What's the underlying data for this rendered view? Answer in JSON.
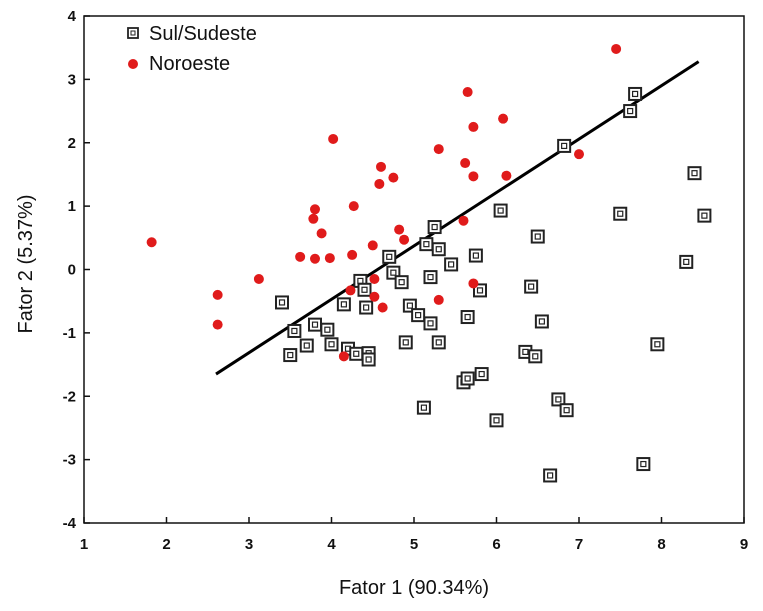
{
  "chart_data": {
    "type": "scatter",
    "xlabel": "Fator 1 (90.34%)",
    "ylabel": "Fator 2 (5.37%)",
    "xlim": [
      1,
      9
    ],
    "ylim": [
      -4,
      4
    ],
    "xticks": [
      "1",
      "2",
      "3",
      "4",
      "5",
      "6",
      "7",
      "8",
      "9"
    ],
    "yticks": [
      "4",
      "3",
      "2",
      "1",
      "0",
      "-1",
      "-2",
      "-3",
      "-4"
    ],
    "legend_position": "top-left",
    "grid": false,
    "series": [
      {
        "name": "Sul/Sudeste",
        "marker": "open-square",
        "color": "#222222",
        "points": [
          [
            3.4,
            -0.52
          ],
          [
            3.55,
            -0.97
          ],
          [
            3.5,
            -1.35
          ],
          [
            3.7,
            -1.2
          ],
          [
            3.8,
            -0.87
          ],
          [
            3.95,
            -0.95
          ],
          [
            4.0,
            -1.18
          ],
          [
            4.15,
            -0.55
          ],
          [
            4.2,
            -1.25
          ],
          [
            4.3,
            -1.33
          ],
          [
            4.35,
            -0.18
          ],
          [
            4.4,
            -0.32
          ],
          [
            4.42,
            -0.6
          ],
          [
            4.45,
            -1.32
          ],
          [
            4.45,
            -1.42
          ],
          [
            4.7,
            0.2
          ],
          [
            4.75,
            -0.05
          ],
          [
            4.85,
            -0.2
          ],
          [
            4.9,
            -1.15
          ],
          [
            4.95,
            -0.57
          ],
          [
            5.05,
            -0.72
          ],
          [
            5.15,
            0.4
          ],
          [
            5.2,
            -0.12
          ],
          [
            5.2,
            -0.85
          ],
          [
            5.25,
            0.67
          ],
          [
            5.3,
            0.32
          ],
          [
            5.3,
            -1.15
          ],
          [
            5.45,
            0.08
          ],
          [
            5.6,
            -1.78
          ],
          [
            5.65,
            -1.72
          ],
          [
            5.65,
            -0.75
          ],
          [
            5.75,
            0.22
          ],
          [
            5.8,
            -0.33
          ],
          [
            5.82,
            -1.65
          ],
          [
            6.0,
            -2.38
          ],
          [
            6.05,
            0.93
          ],
          [
            5.12,
            -2.18
          ],
          [
            6.35,
            -1.3
          ],
          [
            6.42,
            -0.27
          ],
          [
            6.47,
            -1.37
          ],
          [
            6.5,
            0.52
          ],
          [
            6.55,
            -0.82
          ],
          [
            6.65,
            -3.25
          ],
          [
            6.75,
            -2.05
          ],
          [
            6.85,
            -2.22
          ],
          [
            6.82,
            1.95
          ],
          [
            7.5,
            0.88
          ],
          [
            7.62,
            2.5
          ],
          [
            7.68,
            2.77
          ],
          [
            7.78,
            -3.07
          ],
          [
            7.95,
            -1.18
          ],
          [
            8.3,
            0.12
          ],
          [
            8.4,
            1.52
          ],
          [
            8.52,
            0.85
          ]
        ]
      },
      {
        "name": "Noroeste",
        "marker": "filled-circle",
        "color": "#e01b1b",
        "points": [
          [
            1.82,
            0.43
          ],
          [
            2.62,
            -0.4
          ],
          [
            2.62,
            -0.87
          ],
          [
            3.12,
            -0.15
          ],
          [
            3.62,
            0.2
          ],
          [
            3.78,
            0.8
          ],
          [
            3.8,
            0.17
          ],
          [
            3.8,
            0.95
          ],
          [
            3.88,
            0.57
          ],
          [
            3.98,
            0.18
          ],
          [
            4.02,
            2.06
          ],
          [
            4.15,
            -1.37
          ],
          [
            4.23,
            -0.33
          ],
          [
            4.25,
            0.23
          ],
          [
            4.27,
            1.0
          ],
          [
            4.5,
            0.38
          ],
          [
            4.52,
            -0.43
          ],
          [
            4.52,
            -0.15
          ],
          [
            4.58,
            1.35
          ],
          [
            4.6,
            1.62
          ],
          [
            4.62,
            -0.6
          ],
          [
            4.75,
            1.45
          ],
          [
            4.82,
            0.63
          ],
          [
            4.88,
            0.47
          ],
          [
            5.3,
            1.9
          ],
          [
            5.3,
            -0.48
          ],
          [
            5.6,
            0.77
          ],
          [
            5.62,
            1.68
          ],
          [
            5.65,
            2.8
          ],
          [
            5.72,
            2.25
          ],
          [
            5.72,
            1.47
          ],
          [
            5.72,
            -0.22
          ],
          [
            6.08,
            2.38
          ],
          [
            6.12,
            1.48
          ],
          [
            7.0,
            1.82
          ],
          [
            7.45,
            3.48
          ]
        ]
      }
    ],
    "trendline": {
      "from": [
        2.6,
        -1.65
      ],
      "to": [
        8.45,
        3.28
      ]
    }
  }
}
